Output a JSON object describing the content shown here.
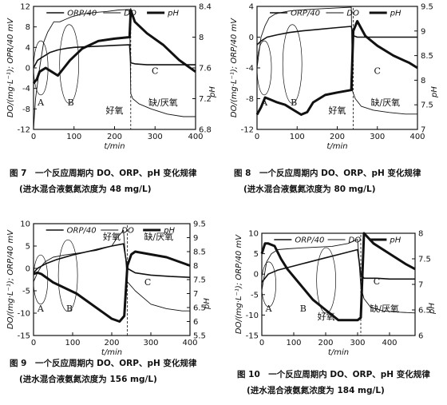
{
  "chart_data": [
    {
      "type": "line",
      "caption": "图 7　一个反应周期内 DO、ORP、pH 变化规律",
      "subcaption": "(进水混合液氨氮浓度为 48 mg/L)",
      "xlabel": "t/min",
      "ylabel": "DO/(mg·L⁻¹); OPR/40 mV",
      "y2label": "pH",
      "xlim": [
        0,
        400
      ],
      "ylim": [
        -12,
        12
      ],
      "y2lim": [
        6.8,
        8.4
      ],
      "xticks": [
        "0",
        "100",
        "200",
        "300",
        "400"
      ],
      "yticks": [
        "-12",
        "-8",
        "-4",
        "0",
        "4",
        "8",
        "12"
      ],
      "y2ticks": [
        "6.8",
        "7.2",
        "7.6",
        "8",
        "8.4"
      ],
      "legend": [
        "ORP/40",
        "DO",
        "pH"
      ],
      "annotations": [
        "A",
        "B",
        "C",
        "好氧",
        "缺/厌氧"
      ],
      "series": [
        {
          "name": "ORP/40",
          "axis": "left",
          "x": [
            0,
            10,
            20,
            40,
            60,
            80,
            100,
            150,
            200,
            237,
            240,
            250,
            280,
            320,
            360,
            400
          ],
          "y": [
            0,
            1.5,
            2,
            3,
            3.5,
            3.8,
            4,
            4.2,
            4.4,
            4.5,
            1,
            0.8,
            0.6,
            0.6,
            0.6,
            0.6
          ]
        },
        {
          "name": "DO",
          "axis": "left",
          "x": [
            0,
            5,
            15,
            25,
            35,
            50,
            65,
            80,
            95,
            120,
            150,
            180,
            210,
            237,
            240,
            245,
            260,
            290,
            330,
            370,
            400
          ],
          "y": [
            -12,
            -6,
            0,
            5,
            7,
            9,
            9,
            9.5,
            10,
            10.5,
            10.8,
            11,
            11.3,
            11.4,
            -5,
            -6,
            -7,
            -8,
            -9,
            -9.5,
            -9.5
          ]
        },
        {
          "name": "pH",
          "axis": "right",
          "x": [
            0,
            8,
            15,
            30,
            45,
            60,
            75,
            90,
            120,
            160,
            200,
            237,
            240,
            250,
            280,
            320,
            360,
            400
          ],
          "y": [
            7.4,
            7.45,
            7.55,
            7.6,
            7.55,
            7.5,
            7.6,
            7.7,
            7.85,
            7.95,
            7.98,
            8.0,
            8.35,
            8.2,
            8.05,
            7.9,
            7.7,
            7.55
          ]
        }
      ]
    },
    {
      "type": "line",
      "caption": "图 8　一个反应周期内 DO、ORP、pH 变化规律",
      "subcaption": "(进水混合液氨氮浓度为 80 mg/L)",
      "xlabel": "t/min",
      "ylabel": "DO/(mg·L⁻¹); ORP/40 mV",
      "y2label": "pH",
      "xlim": [
        0,
        400
      ],
      "ylim": [
        -12,
        4
      ],
      "y2lim": [
        7,
        9.5
      ],
      "xticks": [
        "0",
        "100",
        "200",
        "300",
        "400"
      ],
      "yticks": [
        "-12",
        "-8",
        "-4",
        "0",
        "4"
      ],
      "y2ticks": [
        "7",
        "7.5",
        "8",
        "8.5",
        "9",
        "9.5"
      ],
      "legend": [
        "ORP/40",
        "DO",
        "pH"
      ],
      "annotations": [
        "A",
        "B",
        "C",
        "好氧",
        "缺/厌氧"
      ],
      "series": [
        {
          "name": "ORP/40",
          "axis": "left",
          "x": [
            0,
            10,
            25,
            50,
            80,
            110,
            150,
            190,
            235,
            240,
            250,
            280,
            320,
            360,
            400
          ],
          "y": [
            -1,
            -0.5,
            0,
            0.3,
            0.6,
            0.8,
            1,
            1.2,
            1.4,
            0.2,
            0,
            0,
            0,
            0,
            0
          ]
        },
        {
          "name": "DO",
          "axis": "left",
          "x": [
            0,
            10,
            20,
            30,
            45,
            60,
            80,
            100,
            130,
            160,
            200,
            235,
            238,
            245,
            260,
            290,
            330,
            370,
            400
          ],
          "y": [
            -4,
            0,
            1.5,
            2.5,
            3,
            3.2,
            3.4,
            3.5,
            3.6,
            3.7,
            3.8,
            3.9,
            -7,
            -8,
            -9,
            -9.5,
            -9.8,
            -10,
            -10
          ]
        },
        {
          "name": "pH",
          "axis": "right",
          "x": [
            0,
            10,
            20,
            35,
            50,
            70,
            90,
            110,
            125,
            140,
            170,
            200,
            235,
            240,
            250,
            270,
            300,
            340,
            380,
            400
          ],
          "y": [
            7.3,
            7.45,
            7.65,
            7.6,
            7.55,
            7.5,
            7.4,
            7.3,
            7.35,
            7.55,
            7.7,
            7.75,
            7.8,
            9.0,
            9.2,
            8.9,
            8.7,
            8.5,
            8.35,
            8.25
          ]
        }
      ]
    },
    {
      "type": "line",
      "caption": "图 9　一个反应周期内 DO、ORP、pH 变化规律",
      "subcaption": "(进水混合液氨氮浓度为 156 mg/L)",
      "xlabel": "t/min",
      "ylabel": "DO/(mg·L⁻¹); ORP/40 mV",
      "y2label": "pH",
      "xlim": [
        0,
        400
      ],
      "ylim": [
        -15,
        10
      ],
      "y2lim": [
        5.5,
        9.5
      ],
      "xticks": [
        "0",
        "100",
        "200",
        "300",
        "400"
      ],
      "yticks": [
        "-15",
        "-10",
        "-5",
        "0",
        "5",
        "10"
      ],
      "y2ticks": [
        "5.5",
        "6",
        "6.5",
        "7",
        "7.5",
        "8",
        "8.5",
        "9",
        "9.5"
      ],
      "legend": [
        "ORP/40",
        "DO",
        "pH"
      ],
      "annotations": [
        "A",
        "B",
        "C",
        "好氧",
        "缺/厌氧"
      ],
      "series": [
        {
          "name": "ORP/40",
          "axis": "left",
          "x": [
            0,
            10,
            30,
            60,
            100,
            150,
            200,
            230,
            240,
            260,
            300,
            350,
            400
          ],
          "y": [
            -1,
            0,
            1,
            2,
            3,
            4,
            5,
            5.5,
            0,
            -1,
            -1.5,
            -1.8,
            -2
          ]
        },
        {
          "name": "DO",
          "axis": "left",
          "x": [
            0,
            10,
            20,
            30,
            50,
            80,
            120,
            160,
            200,
            215,
            225,
            230,
            240,
            260,
            300,
            340,
            380,
            400
          ],
          "y": [
            -3,
            -1,
            0.5,
            1.5,
            2.5,
            3,
            3.5,
            4,
            5,
            7,
            8,
            8.5,
            -3,
            -5,
            -8,
            -9,
            -9.5,
            -9.5
          ]
        },
        {
          "name": "pH",
          "axis": "right",
          "x": [
            0,
            10,
            20,
            30,
            50,
            80,
            110,
            140,
            170,
            200,
            220,
            232,
            240,
            250,
            260,
            300,
            340,
            380,
            400
          ],
          "y": [
            7.7,
            7.75,
            7.7,
            7.6,
            7.4,
            7.2,
            7.0,
            6.7,
            6.4,
            6.1,
            6.0,
            6.2,
            8.0,
            8.4,
            8.5,
            8.4,
            8.3,
            8.1,
            8.0
          ]
        }
      ]
    },
    {
      "type": "line",
      "caption": "图 10　一个反应周期内 DO、ORP、pH 变化规律",
      "subcaption": "(进水混合液氨氮浓度为 184 mg/L)",
      "xlabel": "t/min",
      "ylabel": "DO/(mg·L⁻¹); ORP/40 mV",
      "y2label": "pH",
      "xlim": [
        0,
        480
      ],
      "ylim": [
        -15,
        10
      ],
      "y2lim": [
        6,
        8
      ],
      "xticks": [
        "0",
        "100",
        "200",
        "300",
        "400"
      ],
      "yticks": [
        "-15",
        "-10",
        "-5",
        "0",
        "5",
        "10"
      ],
      "y2ticks": [
        "6",
        "6.5",
        "7",
        "7.5",
        "8"
      ],
      "legend": [
        "ORP/40",
        "DO",
        "pH"
      ],
      "annotations": [
        "A",
        "B",
        "C",
        "好氧",
        "缺/厌氧"
      ],
      "series": [
        {
          "name": "ORP/40",
          "axis": "left",
          "x": [
            0,
            20,
            50,
            100,
            150,
            200,
            250,
            300,
            310,
            320,
            360,
            400,
            450,
            480
          ],
          "y": [
            -2,
            0,
            1,
            2,
            3,
            4,
            5,
            6,
            0,
            -1,
            -1,
            -1.2,
            -1.2,
            -1.2
          ]
        },
        {
          "name": "DO",
          "axis": "left",
          "x": [
            0,
            15,
            30,
            50,
            80,
            120,
            170,
            220,
            270,
            300,
            310,
            320,
            340,
            380,
            430,
            480
          ],
          "y": [
            -4,
            3,
            5,
            6,
            6.2,
            6.4,
            6.6,
            6.8,
            7.5,
            8.5,
            -3,
            -6,
            -8,
            -9,
            -9.3,
            -9.5
          ]
        },
        {
          "name": "pH",
          "axis": "right",
          "x": [
            0,
            10,
            20,
            40,
            60,
            80,
            120,
            160,
            200,
            240,
            280,
            300,
            310,
            320,
            350,
            400,
            450,
            480
          ],
          "y": [
            7.6,
            7.8,
            7.8,
            7.75,
            7.5,
            7.3,
            7.0,
            6.7,
            6.5,
            6.3,
            6.3,
            6.3,
            6.35,
            8.0,
            7.8,
            7.6,
            7.4,
            7.3
          ]
        }
      ]
    }
  ]
}
